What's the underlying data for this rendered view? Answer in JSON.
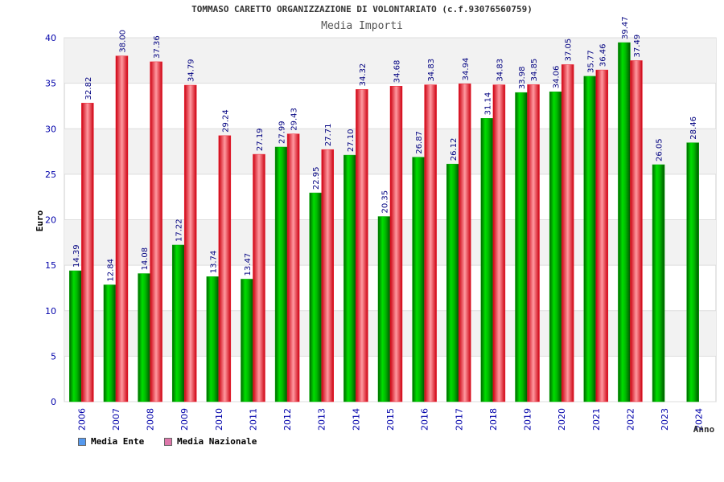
{
  "colors": {
    "ente": "#00aa00",
    "nazionale": "#ee2233",
    "legend_ente": "#5599ee",
    "legend_nazionale": "#dd77aa",
    "axis_text": "#0000aa",
    "band": "#f2f2f2"
  },
  "chart_data": {
    "type": "bar",
    "title": "TOMMASO CARETTO ORGANIZZAZIONE DI VOLONTARIATO (c.f.93076560759)",
    "subtitle": "Media Importi",
    "xlabel": "Anno",
    "ylabel": "Euro",
    "ylim": [
      0,
      40
    ],
    "yticks": [
      0,
      5,
      10,
      15,
      20,
      25,
      30,
      35,
      40
    ],
    "grid": true,
    "legend_position": "bottom-left",
    "categories": [
      "2006",
      "2007",
      "2008",
      "2009",
      "2010",
      "2011",
      "2012",
      "2013",
      "2014",
      "2015",
      "2016",
      "2017",
      "2018",
      "2019",
      "2020",
      "2021",
      "2022",
      "2023",
      "2024"
    ],
    "series": [
      {
        "name": "Media Ente",
        "values": [
          14.39,
          12.84,
          14.08,
          17.22,
          13.74,
          13.47,
          27.99,
          22.95,
          27.1,
          20.35,
          26.87,
          26.12,
          31.14,
          33.98,
          34.06,
          35.77,
          39.47,
          26.05,
          28.46
        ],
        "labels": [
          "14.39",
          "12.84",
          "14.08",
          "17.22",
          "13.74",
          "13.47",
          "27.99",
          "22.95",
          "27.10",
          "20.35",
          "26.87",
          "26.12",
          "31.14",
          "33.98",
          "34.06",
          "35.77",
          "39.47",
          "26.05",
          "28.46"
        ]
      },
      {
        "name": "Media Nazionale",
        "values": [
          32.82,
          38.0,
          37.36,
          34.79,
          29.24,
          27.19,
          29.43,
          27.71,
          34.32,
          34.68,
          34.83,
          34.94,
          34.83,
          34.85,
          37.05,
          36.46,
          37.49,
          null,
          null
        ],
        "labels": [
          "32.82",
          "38.00",
          "37.36",
          "34.79",
          "29.24",
          "27.19",
          "29.43",
          "27.71",
          "34.32",
          "34.68",
          "34.83",
          "34.94",
          "34.83",
          "34.85",
          "37.05",
          "36.46",
          "37.49",
          "",
          ""
        ]
      }
    ]
  }
}
